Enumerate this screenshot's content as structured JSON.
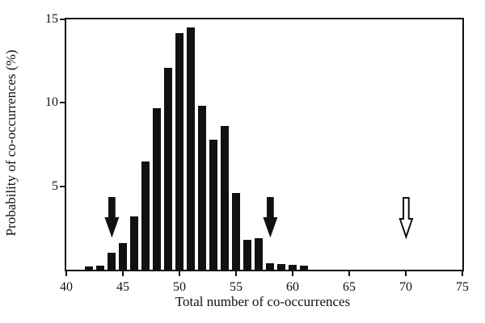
{
  "chart_data": {
    "type": "bar",
    "xlabel": "Total number of co-occurrences",
    "ylabel": "Probability of co-occurrences (%)",
    "xlim": [
      40,
      75
    ],
    "ylim": [
      0,
      15
    ],
    "x_ticks": [
      "40",
      "45",
      "50",
      "55",
      "60",
      "65",
      "70",
      "75"
    ],
    "y_ticks": [
      "5",
      "10",
      "15"
    ],
    "grid": false,
    "legend": null,
    "bar_color": "#111111",
    "categories": [
      42,
      43,
      44,
      45,
      46,
      47,
      48,
      49,
      50,
      51,
      52,
      53,
      54,
      55,
      56,
      57,
      58,
      59,
      60,
      61
    ],
    "values": [
      0.2,
      0.25,
      1.0,
      1.6,
      3.2,
      6.5,
      9.7,
      12.1,
      14.2,
      14.5,
      9.8,
      7.8,
      8.6,
      4.6,
      1.8,
      1.9,
      0.4,
      0.35,
      0.3,
      0.25
    ],
    "annotations": [
      {
        "type": "arrow-down-filled",
        "x": 44,
        "y_top": 4.3,
        "y_tip": 2.0
      },
      {
        "type": "arrow-down-filled",
        "x": 58,
        "y_top": 4.3,
        "y_tip": 2.0
      },
      {
        "type": "arrow-down-open",
        "x": 70,
        "y_top": 4.3,
        "y_tip": 1.9
      }
    ]
  }
}
